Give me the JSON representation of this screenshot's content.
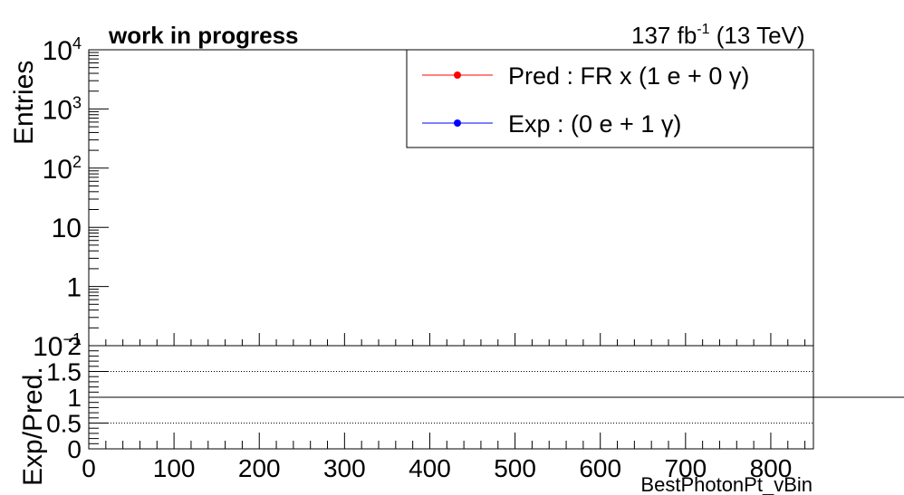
{
  "header": {
    "left_text": "work in progress",
    "lumi_prefix": "137 fb",
    "lumi_exp": "-1",
    "lumi_suffix": " (13 TeV)"
  },
  "chart_data": [
    {
      "type": "line",
      "panel": "upper",
      "ylabel": "Entries",
      "yscale": "log",
      "ylim": [
        0.1,
        10000
      ],
      "xlim": [
        0,
        850
      ],
      "y_tick_labels": [
        {
          "value": 10000,
          "base": "10",
          "exp": "4"
        },
        {
          "value": 1000,
          "base": "10",
          "exp": "3"
        },
        {
          "value": 100,
          "base": "10",
          "exp": "2"
        },
        {
          "value": 10,
          "base": "10",
          "exp": ""
        },
        {
          "value": 1,
          "base": "1",
          "exp": ""
        },
        {
          "value": 0.1,
          "base": "10",
          "exp": "−1"
        }
      ],
      "legend_placement": "top-right",
      "legend": [
        {
          "label": "Pred : FR x (1 e + 0 γ)",
          "color": "#ff0000"
        },
        {
          "label": "Exp : (0 e + 1 γ)",
          "color": "#0000ff"
        }
      ],
      "series": [
        {
          "name": "Pred : FR x (1 e + 0 γ)",
          "color": "#ff0000",
          "x": [],
          "y": []
        },
        {
          "name": "Exp : (0 e + 1 γ)",
          "color": "#0000ff",
          "x": [],
          "y": []
        }
      ]
    },
    {
      "type": "line",
      "panel": "ratio",
      "ylabel": "Exp/Pred.",
      "xlabel": "BestPhotonPt_vBin",
      "ylim": [
        0,
        2
      ],
      "xlim": [
        0,
        850
      ],
      "y_ticks": [
        0,
        0.5,
        1,
        1.5,
        2
      ],
      "y_tick_labels": [
        "0",
        "0.5",
        "1",
        "1.5",
        "2"
      ],
      "x_ticks": [
        0,
        100,
        200,
        300,
        400,
        500,
        600,
        700,
        800
      ],
      "x_tick_labels": [
        "0",
        "100",
        "200",
        "300",
        "400",
        "500",
        "600",
        "700",
        "800"
      ],
      "grid_y": [
        0.5,
        1.5
      ],
      "reference_line": 1,
      "series": []
    }
  ]
}
